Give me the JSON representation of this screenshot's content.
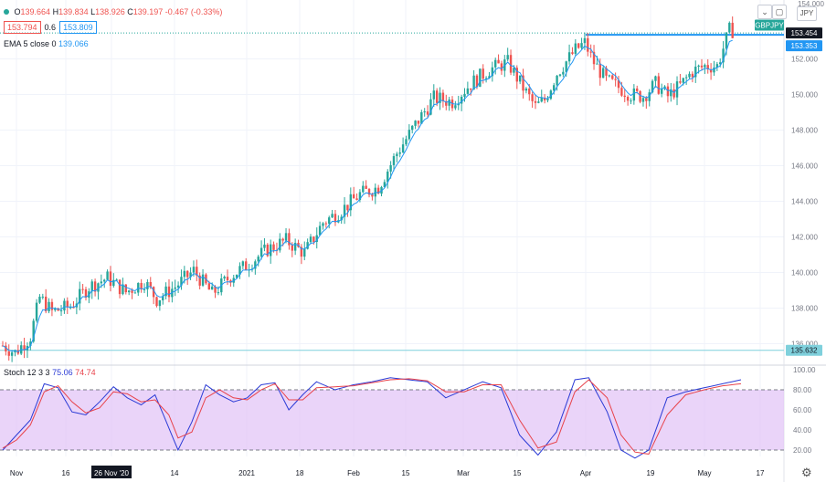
{
  "header": {
    "ohlc": {
      "o_label": "O",
      "o": "139.664",
      "h_label": "H",
      "h": "139.834",
      "l_label": "L",
      "l": "138.926",
      "c_label": "C",
      "c": "139.197",
      "chg": "-0.467 (-0.33%)"
    },
    "bid": "153.794",
    "spread": "0.6",
    "ask": "153.809",
    "ema_label": "EMA 5 close 0",
    "ema_value": "139.066",
    "currency": "JPY",
    "top_price": "154.000"
  },
  "colors": {
    "up": "#26a69a",
    "down": "#ef5350",
    "ema": "#2196f3",
    "level": "#2196f3",
    "k": "#2b3bd6",
    "d": "#e8434b",
    "stoch_band": "#e3c6f7"
  },
  "price_axis": {
    "ticks": [
      "138.000",
      "140.000",
      "142.000",
      "144.000",
      "146.000",
      "148.000",
      "150.000",
      "152.000",
      "136.000"
    ],
    "min": 134.9,
    "max": 155.0
  },
  "price_badges": {
    "symbol": "GBPJPY",
    "last": "153.454",
    "level": "153.353",
    "support": "135.632"
  },
  "stoch": {
    "label": "Stoch 12 3 3",
    "k": "75.06",
    "d": "74.74",
    "ticks": [
      "100.00",
      "80.00",
      "60.00",
      "40.00",
      "20.00"
    ],
    "upper": 80,
    "lower": 20
  },
  "time_axis": [
    "Nov",
    "16",
    "26 Nov '20",
    "14",
    "2021",
    "18",
    "Feb",
    "15",
    "Mar",
    "15",
    "Apr",
    "19",
    "May",
    "17"
  ],
  "chart_data": {
    "type": "candlestick",
    "ylim": [
      134.9,
      155.0
    ],
    "anchors": [
      [
        0,
        135.9
      ],
      [
        4,
        135.5
      ],
      [
        9,
        136.4
      ],
      [
        12,
        138.6
      ],
      [
        16,
        137.8
      ],
      [
        22,
        138.1
      ],
      [
        28,
        139.2
      ],
      [
        34,
        139.7
      ],
      [
        40,
        138.9
      ],
      [
        46,
        139.5
      ],
      [
        50,
        138.5
      ],
      [
        56,
        139.2
      ],
      [
        62,
        140.1
      ],
      [
        68,
        138.8
      ],
      [
        74,
        139.8
      ],
      [
        80,
        140.5
      ],
      [
        86,
        141.3
      ],
      [
        92,
        141.8
      ],
      [
        98,
        141.1
      ],
      [
        104,
        142.8
      ],
      [
        110,
        143.5
      ],
      [
        116,
        144.4
      ],
      [
        122,
        144.8
      ],
      [
        128,
        146.7
      ],
      [
        134,
        148.3
      ],
      [
        140,
        149.8
      ],
      [
        146,
        149.6
      ],
      [
        152,
        150.6
      ],
      [
        158,
        151.4
      ],
      [
        164,
        151.8
      ],
      [
        170,
        150.1
      ],
      [
        173,
        149.3
      ],
      [
        176,
        149.7
      ],
      [
        180,
        151.2
      ],
      [
        186,
        152.5
      ],
      [
        189,
        152.9
      ],
      [
        192,
        151.8
      ],
      [
        196,
        150.8
      ],
      [
        200,
        150.4
      ],
      [
        204,
        150.0
      ],
      [
        208,
        149.9
      ],
      [
        212,
        150.6
      ],
      [
        216,
        149.9
      ],
      [
        220,
        150.5
      ],
      [
        224,
        151.3
      ],
      [
        228,
        151.6
      ],
      [
        232,
        151.6
      ],
      [
        234,
        152.6
      ],
      [
        236,
        153.6
      ]
    ],
    "stoch": {
      "k": [
        [
          0,
          20
        ],
        [
          3,
          35
        ],
        [
          6,
          50
        ],
        [
          9,
          86
        ],
        [
          12,
          82
        ],
        [
          15,
          58
        ],
        [
          18,
          55
        ],
        [
          21,
          68
        ],
        [
          24,
          83
        ],
        [
          27,
          72
        ],
        [
          30,
          65
        ],
        [
          33,
          75
        ],
        [
          36,
          42
        ],
        [
          38,
          20
        ],
        [
          41,
          48
        ],
        [
          44,
          85
        ],
        [
          47,
          75
        ],
        [
          50,
          68
        ],
        [
          53,
          72
        ],
        [
          56,
          85
        ],
        [
          59,
          87
        ],
        [
          62,
          60
        ],
        [
          65,
          75
        ],
        [
          68,
          88
        ],
        [
          72,
          80
        ],
        [
          76,
          85
        ],
        [
          80,
          88
        ],
        [
          84,
          92
        ],
        [
          88,
          90
        ],
        [
          92,
          88
        ],
        [
          96,
          72
        ],
        [
          100,
          80
        ],
        [
          104,
          88
        ],
        [
          108,
          82
        ],
        [
          112,
          35
        ],
        [
          116,
          15
        ],
        [
          120,
          38
        ],
        [
          124,
          90
        ],
        [
          127,
          92
        ],
        [
          131,
          58
        ],
        [
          134,
          20
        ],
        [
          137,
          12
        ],
        [
          140,
          20
        ],
        [
          144,
          72
        ],
        [
          148,
          78
        ],
        [
          152,
          82
        ],
        [
          156,
          86
        ],
        [
          160,
          90
        ]
      ],
      "d": [
        [
          0,
          22
        ],
        [
          3,
          30
        ],
        [
          6,
          45
        ],
        [
          9,
          78
        ],
        [
          12,
          84
        ],
        [
          15,
          68
        ],
        [
          18,
          57
        ],
        [
          21,
          62
        ],
        [
          24,
          78
        ],
        [
          27,
          76
        ],
        [
          30,
          68
        ],
        [
          33,
          70
        ],
        [
          36,
          55
        ],
        [
          38,
          32
        ],
        [
          41,
          38
        ],
        [
          44,
          72
        ],
        [
          47,
          80
        ],
        [
          50,
          72
        ],
        [
          53,
          70
        ],
        [
          56,
          80
        ],
        [
          59,
          86
        ],
        [
          62,
          70
        ],
        [
          65,
          70
        ],
        [
          68,
          82
        ],
        [
          72,
          83
        ],
        [
          76,
          84
        ],
        [
          80,
          87
        ],
        [
          84,
          90
        ],
        [
          88,
          91
        ],
        [
          92,
          89
        ],
        [
          96,
          78
        ],
        [
          100,
          78
        ],
        [
          104,
          85
        ],
        [
          108,
          85
        ],
        [
          112,
          50
        ],
        [
          116,
          22
        ],
        [
          120,
          28
        ],
        [
          124,
          78
        ],
        [
          127,
          90
        ],
        [
          131,
          72
        ],
        [
          134,
          35
        ],
        [
          137,
          18
        ],
        [
          140,
          16
        ],
        [
          144,
          55
        ],
        [
          148,
          75
        ],
        [
          152,
          80
        ],
        [
          156,
          84
        ],
        [
          160,
          86
        ]
      ]
    }
  }
}
